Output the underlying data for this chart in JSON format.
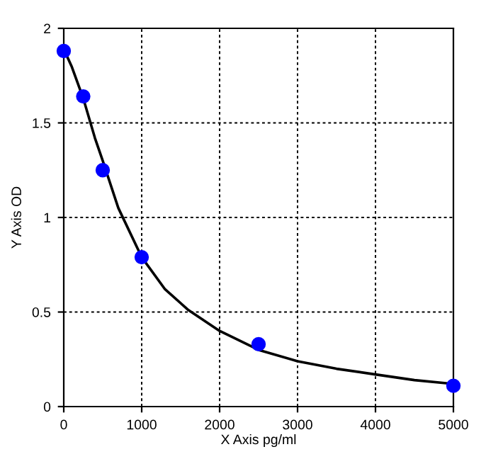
{
  "chart_data": {
    "type": "scatter",
    "xlabel": "X Axis pg/ml",
    "ylabel": "Y Axis OD",
    "xlim": [
      0,
      5000
    ],
    "ylim": [
      0,
      2
    ],
    "xticks": [
      0,
      1000,
      2000,
      3000,
      4000,
      5000
    ],
    "yticks": [
      0,
      0.5,
      1,
      1.5,
      2
    ],
    "grid": true,
    "series": [
      {
        "color": "#0000ff",
        "marker": "circle",
        "x": [
          0,
          250,
          500,
          1000,
          2500,
          5000
        ],
        "values": [
          1.88,
          1.64,
          1.25,
          0.79,
          0.33,
          0.11
        ]
      },
      {
        "type": "line",
        "color": "#000000",
        "marker": "none",
        "line_style": "solid",
        "x": [
          0,
          100,
          250,
          400,
          500,
          700,
          1000,
          1300,
          1600,
          2000,
          2500,
          3000,
          3500,
          4000,
          4500,
          5000
        ],
        "values": [
          1.89,
          1.8,
          1.63,
          1.42,
          1.3,
          1.05,
          0.79,
          0.62,
          0.51,
          0.4,
          0.3,
          0.24,
          0.2,
          0.17,
          0.14,
          0.12
        ]
      }
    ]
  }
}
